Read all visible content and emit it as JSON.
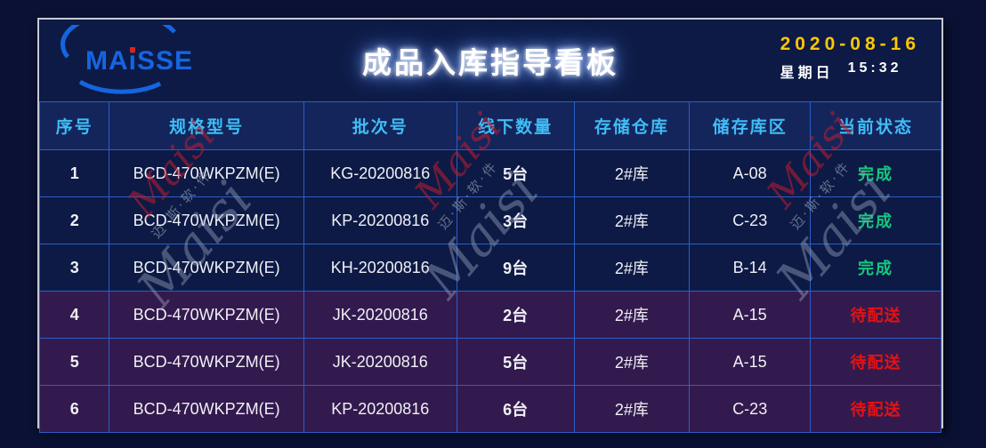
{
  "header": {
    "logo": {
      "part1": "MA",
      "part2": "i",
      "part3": "SSE"
    },
    "title": "成品入库指导看板",
    "date": "2020-08-16",
    "weekday": "星期日",
    "time": "15:32"
  },
  "table": {
    "columns": [
      "序号",
      "规格型号",
      "批次号",
      "线下数量",
      "存储仓库",
      "储存库区",
      "当前状态"
    ],
    "rows": [
      {
        "no": "1",
        "model": "BCD-470WKPZM(E)",
        "batch": "KG-20200816",
        "qty": "5台",
        "warehouse": "2#库",
        "area": "A-08",
        "status": "完成",
        "status_type": "done"
      },
      {
        "no": "2",
        "model": "BCD-470WKPZM(E)",
        "batch": "KP-20200816",
        "qty": "3台",
        "warehouse": "2#库",
        "area": "C-23",
        "status": "完成",
        "status_type": "done"
      },
      {
        "no": "3",
        "model": "BCD-470WKPZM(E)",
        "batch": "KH-20200816",
        "qty": "9台",
        "warehouse": "2#库",
        "area": "B-14",
        "status": "完成",
        "status_type": "done"
      },
      {
        "no": "4",
        "model": "BCD-470WKPZM(E)",
        "batch": "JK-20200816",
        "qty": "2台",
        "warehouse": "2#库",
        "area": "A-15",
        "status": "待配送",
        "status_type": "pending"
      },
      {
        "no": "5",
        "model": "BCD-470WKPZM(E)",
        "batch": "JK-20200816",
        "qty": "5台",
        "warehouse": "2#库",
        "area": "A-15",
        "status": "待配送",
        "status_type": "pending"
      },
      {
        "no": "6",
        "model": "BCD-470WKPZM(E)",
        "batch": "KP-20200816",
        "qty": "6台",
        "warehouse": "2#库",
        "area": "C-23",
        "status": "待配送",
        "status_type": "pending"
      }
    ]
  },
  "watermark": {
    "brand": "Maisi",
    "company": "迈·斯·软·件"
  },
  "colors": {
    "page_bg": "#0a1134",
    "panel_bg": "#0d1a45",
    "grid_blue": "#2c5ec6",
    "header_text_blue": "#3fbdf5",
    "date_yellow": "#ffc600",
    "status_done_green": "#12c97d",
    "status_pending_red": "#e51212",
    "pending_row_bg": "#331a4e",
    "logo_blue": "#1565e0"
  }
}
